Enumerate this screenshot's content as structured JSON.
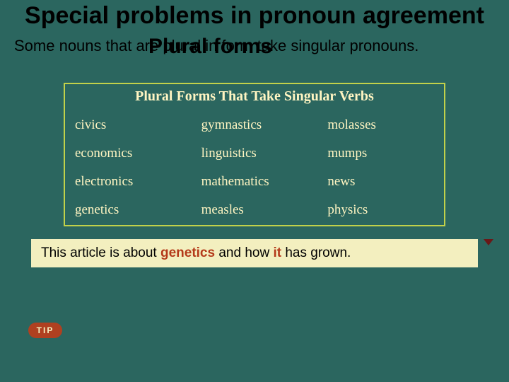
{
  "colors": {
    "background": "#2b665f",
    "table_border": "#c2d14a",
    "table_text": "#fff5c2",
    "sentence_bg": "#f3efbf",
    "highlight": "#b43a1a",
    "tip_bg": "#b04020",
    "tip_text": "#f5f0c0",
    "arrow": "#6a1818"
  },
  "title": "Special problems in pronoun agreement",
  "subtitle_overlay": "Plural forms",
  "note_text": "Some nouns that are plural in form take singular pronouns.",
  "table": {
    "header": "Plural Forms That Take Singular Verbs",
    "columns": 3,
    "rows": [
      [
        "civics",
        "gymnastics",
        "molasses"
      ],
      [
        "economics",
        "linguistics",
        "mumps"
      ],
      [
        "electronics",
        "mathematics",
        "news"
      ],
      [
        "genetics",
        "measles",
        "physics"
      ]
    ]
  },
  "sentence": {
    "pre": "This article is about ",
    "kw1": "genetics",
    "mid": " and how ",
    "kw2": "it",
    "post": " has grown."
  },
  "tip_label": "TIP"
}
